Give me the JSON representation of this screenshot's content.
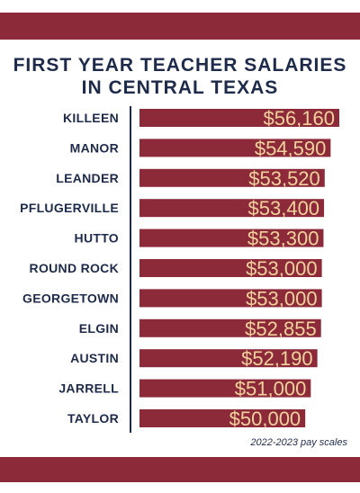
{
  "header": {
    "title_line1": "FIRST YEAR TEACHER SALARIES",
    "title_line2": "IN CENTRAL TEXAS"
  },
  "footnote": "2022-2023 pay scales",
  "colors": {
    "band": "#8c2a3a",
    "bar": "#8c2a3a",
    "text_dark": "#1d2a4a",
    "value_text": "#f2d29c"
  },
  "chart_data": {
    "type": "bar",
    "orientation": "horizontal",
    "title": "FIRST YEAR TEACHER SALARIES IN CENTRAL TEXAS",
    "categories": [
      "KILLEEN",
      "MANOR",
      "LEANDER",
      "PFLUGERVILLE",
      "HUTTO",
      "ROUND ROCK",
      "GEORGETOWN",
      "ELGIN",
      "AUSTIN",
      "JARRELL",
      "TAYLOR"
    ],
    "values": [
      56160,
      54590,
      53520,
      53400,
      53300,
      53000,
      53000,
      52855,
      52190,
      51000,
      50000
    ],
    "value_labels": [
      "$56,160",
      "$54,590",
      "$53,520",
      "$53,400",
      "$53,300",
      "$53,000",
      "$53,000",
      "$52,855",
      "$52,190",
      "$51,000",
      "$50,000"
    ],
    "xlim": [
      20000,
      56160
    ],
    "grid": false,
    "legend": "none"
  }
}
